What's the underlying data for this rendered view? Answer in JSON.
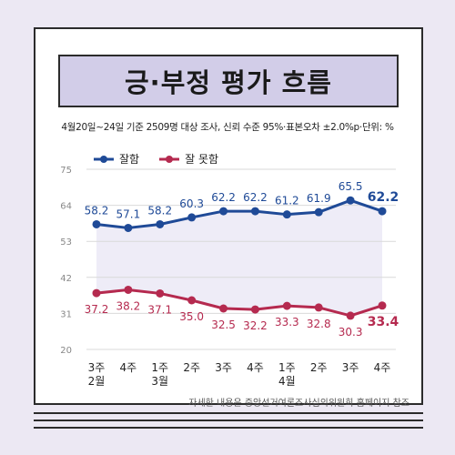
{
  "title": "긍·부정 평가 흐름",
  "note": "4월20일~24일 기준 2509명 대상 조사, 신뢰 수준 95%·표본오차 ±2.0%p·단위: %",
  "source": "자세한 내용은 중앙선거여론조사심의위원회 홈페이지 참조",
  "colors": {
    "positive": "#1f4a97",
    "negative": "#b52a4f",
    "band": "#eeecf7",
    "grid": "#d9d9d9"
  },
  "chart_data": {
    "type": "line",
    "categories": [
      "3주\n2월",
      "4주",
      "1주\n3월",
      "2주",
      "3주",
      "4주",
      "1주\n4월",
      "2주",
      "3주",
      "4주"
    ],
    "series": [
      {
        "name": "잘함",
        "values": [
          58.2,
          57.1,
          58.2,
          60.3,
          62.2,
          62.2,
          61.2,
          61.9,
          65.5,
          62.2
        ],
        "labels": [
          "58.2",
          "57.1",
          "58.2",
          "60.3",
          "62.2",
          "62.2",
          "61.2",
          "61.9",
          "65.5",
          "62.2"
        ]
      },
      {
        "name": "잘 못함",
        "values": [
          37.2,
          38.2,
          37.1,
          35.0,
          32.5,
          32.2,
          33.3,
          32.8,
          30.3,
          33.4
        ],
        "labels": [
          "37.2",
          "38.2",
          "37.1",
          "35.0",
          "32.5",
          "32.2",
          "33.3",
          "32.8",
          "30.3",
          "33.4"
        ]
      }
    ],
    "yticks": [
      "75",
      "64",
      "53",
      "42",
      "31",
      "20"
    ],
    "ylim": [
      20,
      75
    ],
    "grid": true,
    "legend": "top-left"
  }
}
